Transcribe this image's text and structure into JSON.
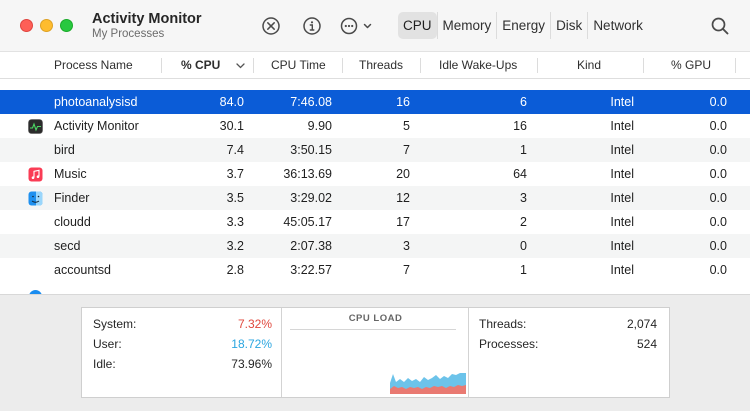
{
  "window": {
    "title": "Activity Monitor",
    "subtitle": "My Processes"
  },
  "toolbar": {
    "stop_icon": "stop-process-icon",
    "info_icon": "inspect-icon",
    "more_icon": "more-actions-icon",
    "search_icon": "search-icon",
    "tabs": [
      "CPU",
      "Memory",
      "Energy",
      "Disk",
      "Network"
    ],
    "active_tab": "CPU"
  },
  "table": {
    "columns": [
      "Process Name",
      "% CPU",
      "CPU Time",
      "Threads",
      "Idle Wake-Ups",
      "Kind",
      "% GPU"
    ],
    "sorted_column": "% CPU",
    "rows": [
      {
        "name": "photoanalysisd",
        "cpu": "84.0",
        "time": "7:46.08",
        "threads": "16",
        "wakeups": "6",
        "kind": "Intel",
        "gpu": "0.0",
        "icon": "",
        "selected": true
      },
      {
        "name": "Activity Monitor",
        "cpu": "30.1",
        "time": "9.90",
        "threads": "5",
        "wakeups": "16",
        "kind": "Intel",
        "gpu": "0.0",
        "icon": "activity-monitor-icon",
        "selected": false
      },
      {
        "name": "bird",
        "cpu": "7.4",
        "time": "3:50.15",
        "threads": "7",
        "wakeups": "1",
        "kind": "Intel",
        "gpu": "0.0",
        "icon": "",
        "selected": false
      },
      {
        "name": "Music",
        "cpu": "3.7",
        "time": "36:13.69",
        "threads": "20",
        "wakeups": "64",
        "kind": "Intel",
        "gpu": "0.0",
        "icon": "music-icon",
        "selected": false
      },
      {
        "name": "Finder",
        "cpu": "3.5",
        "time": "3:29.02",
        "threads": "12",
        "wakeups": "3",
        "kind": "Intel",
        "gpu": "0.0",
        "icon": "finder-icon",
        "selected": false
      },
      {
        "name": "cloudd",
        "cpu": "3.3",
        "time": "45:05.17",
        "threads": "17",
        "wakeups": "2",
        "kind": "Intel",
        "gpu": "0.0",
        "icon": "",
        "selected": false
      },
      {
        "name": "secd",
        "cpu": "3.2",
        "time": "2:07.38",
        "threads": "3",
        "wakeups": "0",
        "kind": "Intel",
        "gpu": "0.0",
        "icon": "",
        "selected": false
      },
      {
        "name": "accountsd",
        "cpu": "2.8",
        "time": "3:22.57",
        "threads": "7",
        "wakeups": "1",
        "kind": "Intel",
        "gpu": "0.0",
        "icon": "",
        "selected": false
      }
    ]
  },
  "summary": {
    "system_label": "System:",
    "system_value": "7.32%",
    "user_label": "User:",
    "user_value": "18.72%",
    "idle_label": "Idle:",
    "idle_value": "73.96%",
    "cpu_load_title": "CPU LOAD",
    "threads_label": "Threads:",
    "threads_value": "2,074",
    "processes_label": "Processes:",
    "processes_value": "524"
  },
  "colors": {
    "selection": "#0b5cd7",
    "system": "#e0483d",
    "user": "#2ba6e0",
    "graph_user": "#6cc3ea",
    "graph_system": "#e97a72"
  }
}
